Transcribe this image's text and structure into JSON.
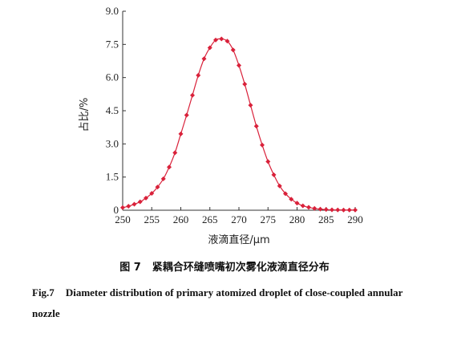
{
  "chart_data": {
    "type": "line",
    "xlabel": "液滴直径/μm",
    "ylabel": "占比/%",
    "xlim": [
      250,
      290
    ],
    "ylim": [
      0,
      9.0
    ],
    "x_ticks": [
      "250",
      "255",
      "260",
      "265",
      "270",
      "275",
      "280",
      "285",
      "290"
    ],
    "y_ticks": [
      "0",
      "1.5",
      "3.0",
      "4.5",
      "6.0",
      "7.5",
      "9.0"
    ],
    "grid": false,
    "series": [
      {
        "color": "#d9213a",
        "marker": "diamond",
        "x": [
          250,
          251,
          252,
          253,
          254,
          255,
          256,
          257,
          258,
          259,
          260,
          261,
          262,
          263,
          264,
          265,
          266,
          267,
          268,
          269,
          270,
          271,
          272,
          273,
          274,
          275,
          276,
          277,
          278,
          279,
          280,
          281,
          282,
          283,
          284,
          285,
          286,
          287,
          288,
          289,
          290
        ],
        "y": [
          0.12,
          0.18,
          0.27,
          0.38,
          0.55,
          0.76,
          1.05,
          1.42,
          1.95,
          2.6,
          3.45,
          4.3,
          5.2,
          6.1,
          6.85,
          7.35,
          7.7,
          7.75,
          7.65,
          7.25,
          6.55,
          5.7,
          4.75,
          3.8,
          2.95,
          2.2,
          1.6,
          1.1,
          0.75,
          0.5,
          0.32,
          0.2,
          0.13,
          0.08,
          0.05,
          0.03,
          0.02,
          0.015,
          0.01,
          0.01,
          0.01
        ]
      }
    ]
  },
  "caption": {
    "cn_number": "图 7",
    "cn_text": "紧耦合环缝喷嘴初次雾化液滴直径分布",
    "en_number": "Fig.7",
    "en_text": "Diameter distribution of primary atomized droplet of close-coupled annular nozzle"
  }
}
